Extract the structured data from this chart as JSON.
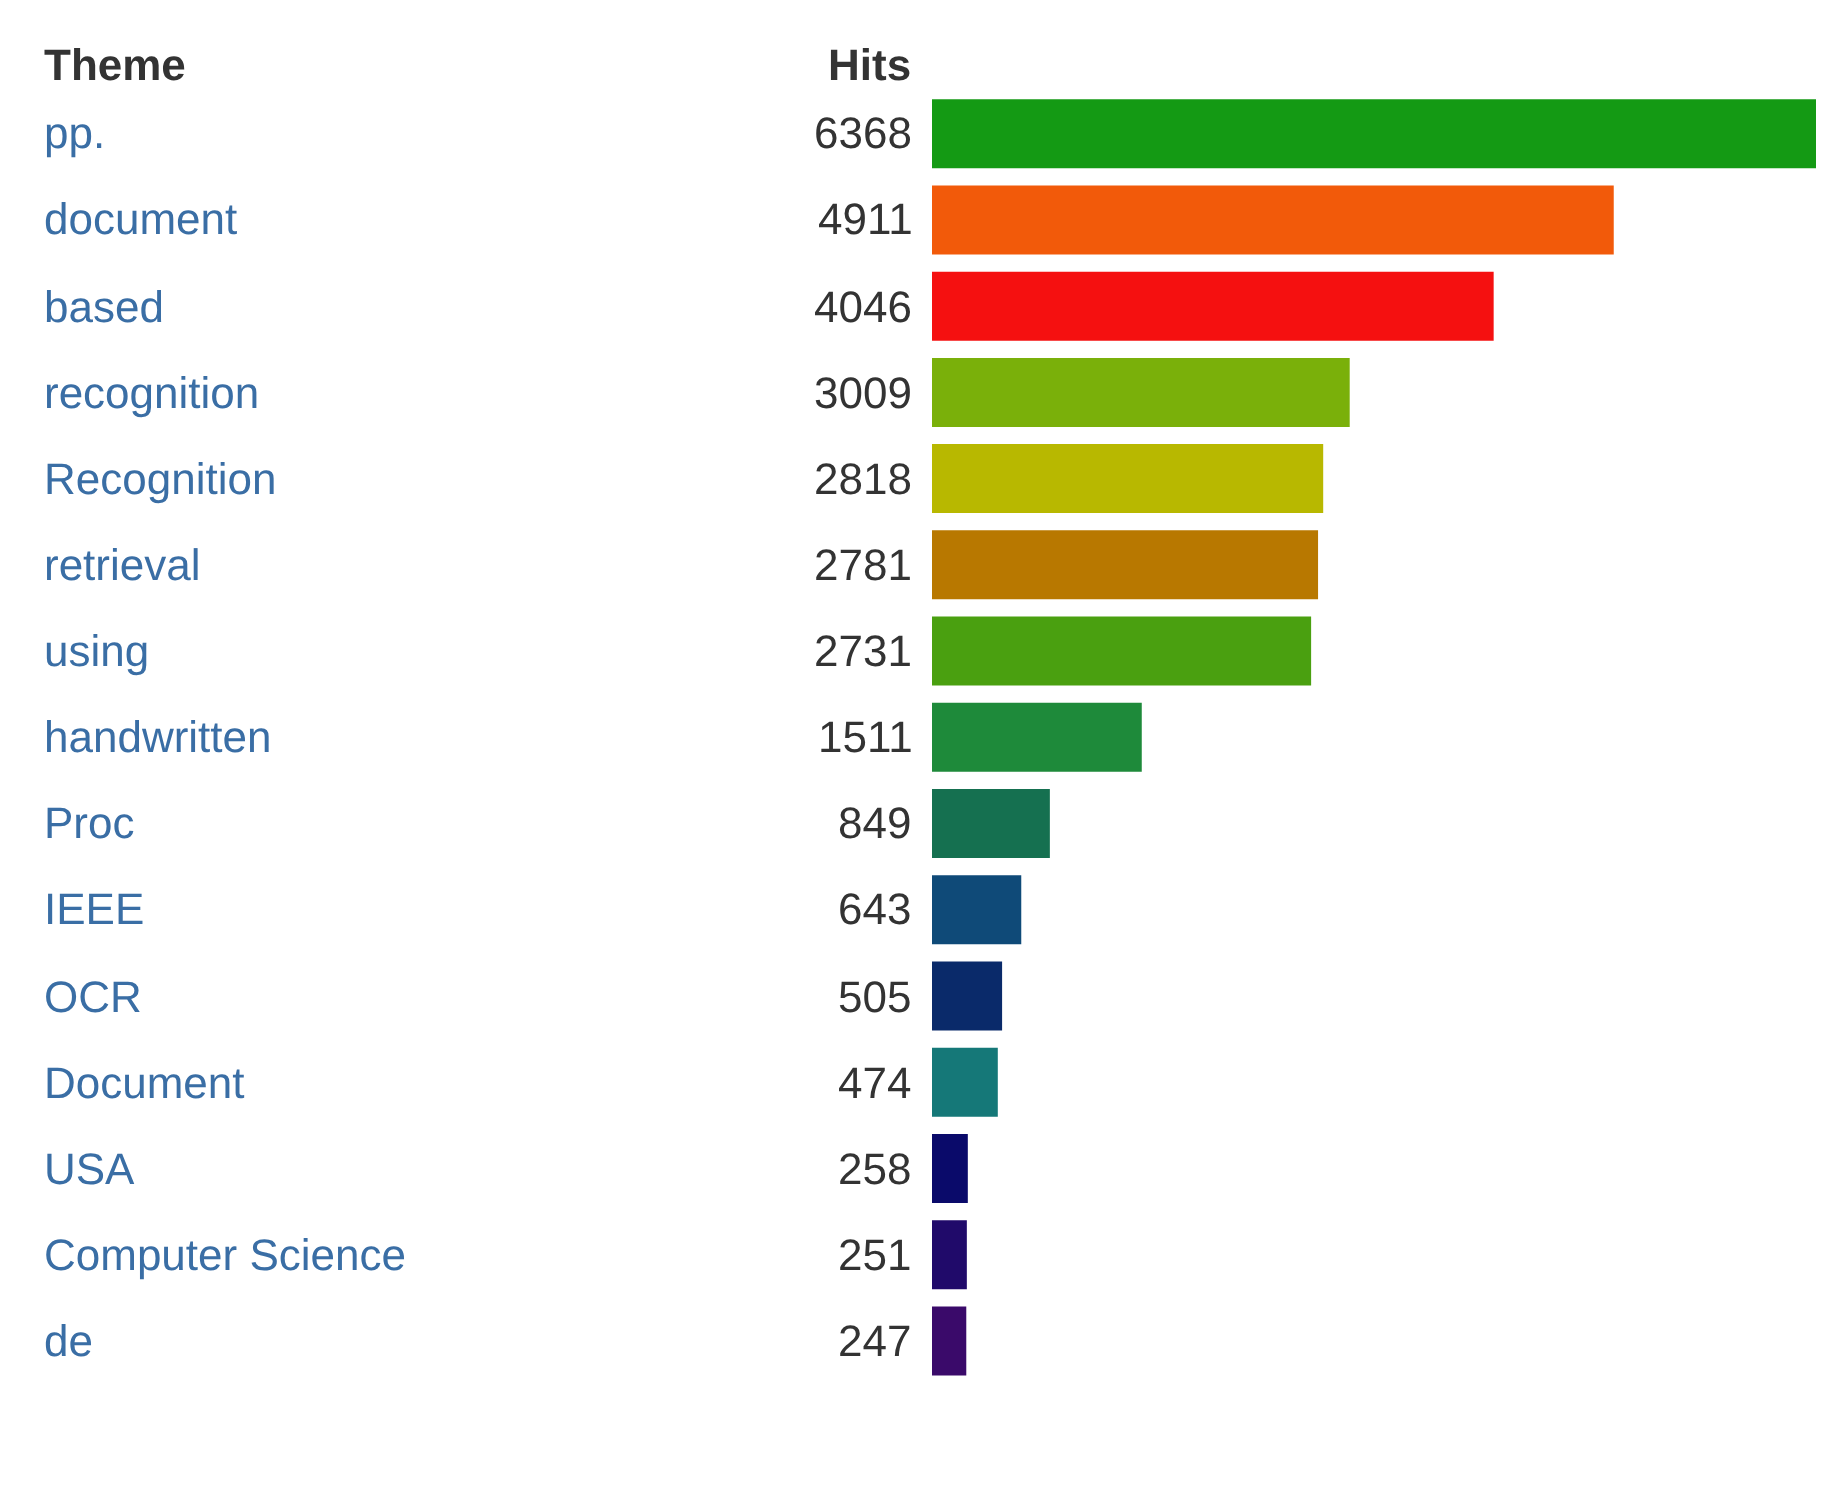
{
  "chart_data": {
    "type": "bar",
    "orientation": "horizontal",
    "ylabel": "Theme",
    "xlabel": "Hits",
    "data_labels": true,
    "tick_labels": false,
    "categories": [
      "pp.",
      "document",
      "based",
      "recognition",
      "Recognition",
      "retrieval",
      "using",
      "handwritten",
      "Proc",
      "IEEE",
      "OCR",
      "Document",
      "USA",
      "Computer Science",
      "de"
    ],
    "values": [
      6368,
      4911,
      4046,
      3009,
      2818,
      2781,
      2731,
      1511,
      849,
      643,
      505,
      474,
      258,
      251,
      247
    ],
    "colors": [
      "#149a14",
      "#f25a0a",
      "#f51010",
      "#7ab00a",
      "#b8b800",
      "#b87800",
      "#4aa010",
      "#1e8a3a",
      "#157050",
      "#0f4a78",
      "#0a2a6a",
      "#157878",
      "#0a0a6a",
      "#200a6a",
      "#3a0a6a"
    ]
  }
}
